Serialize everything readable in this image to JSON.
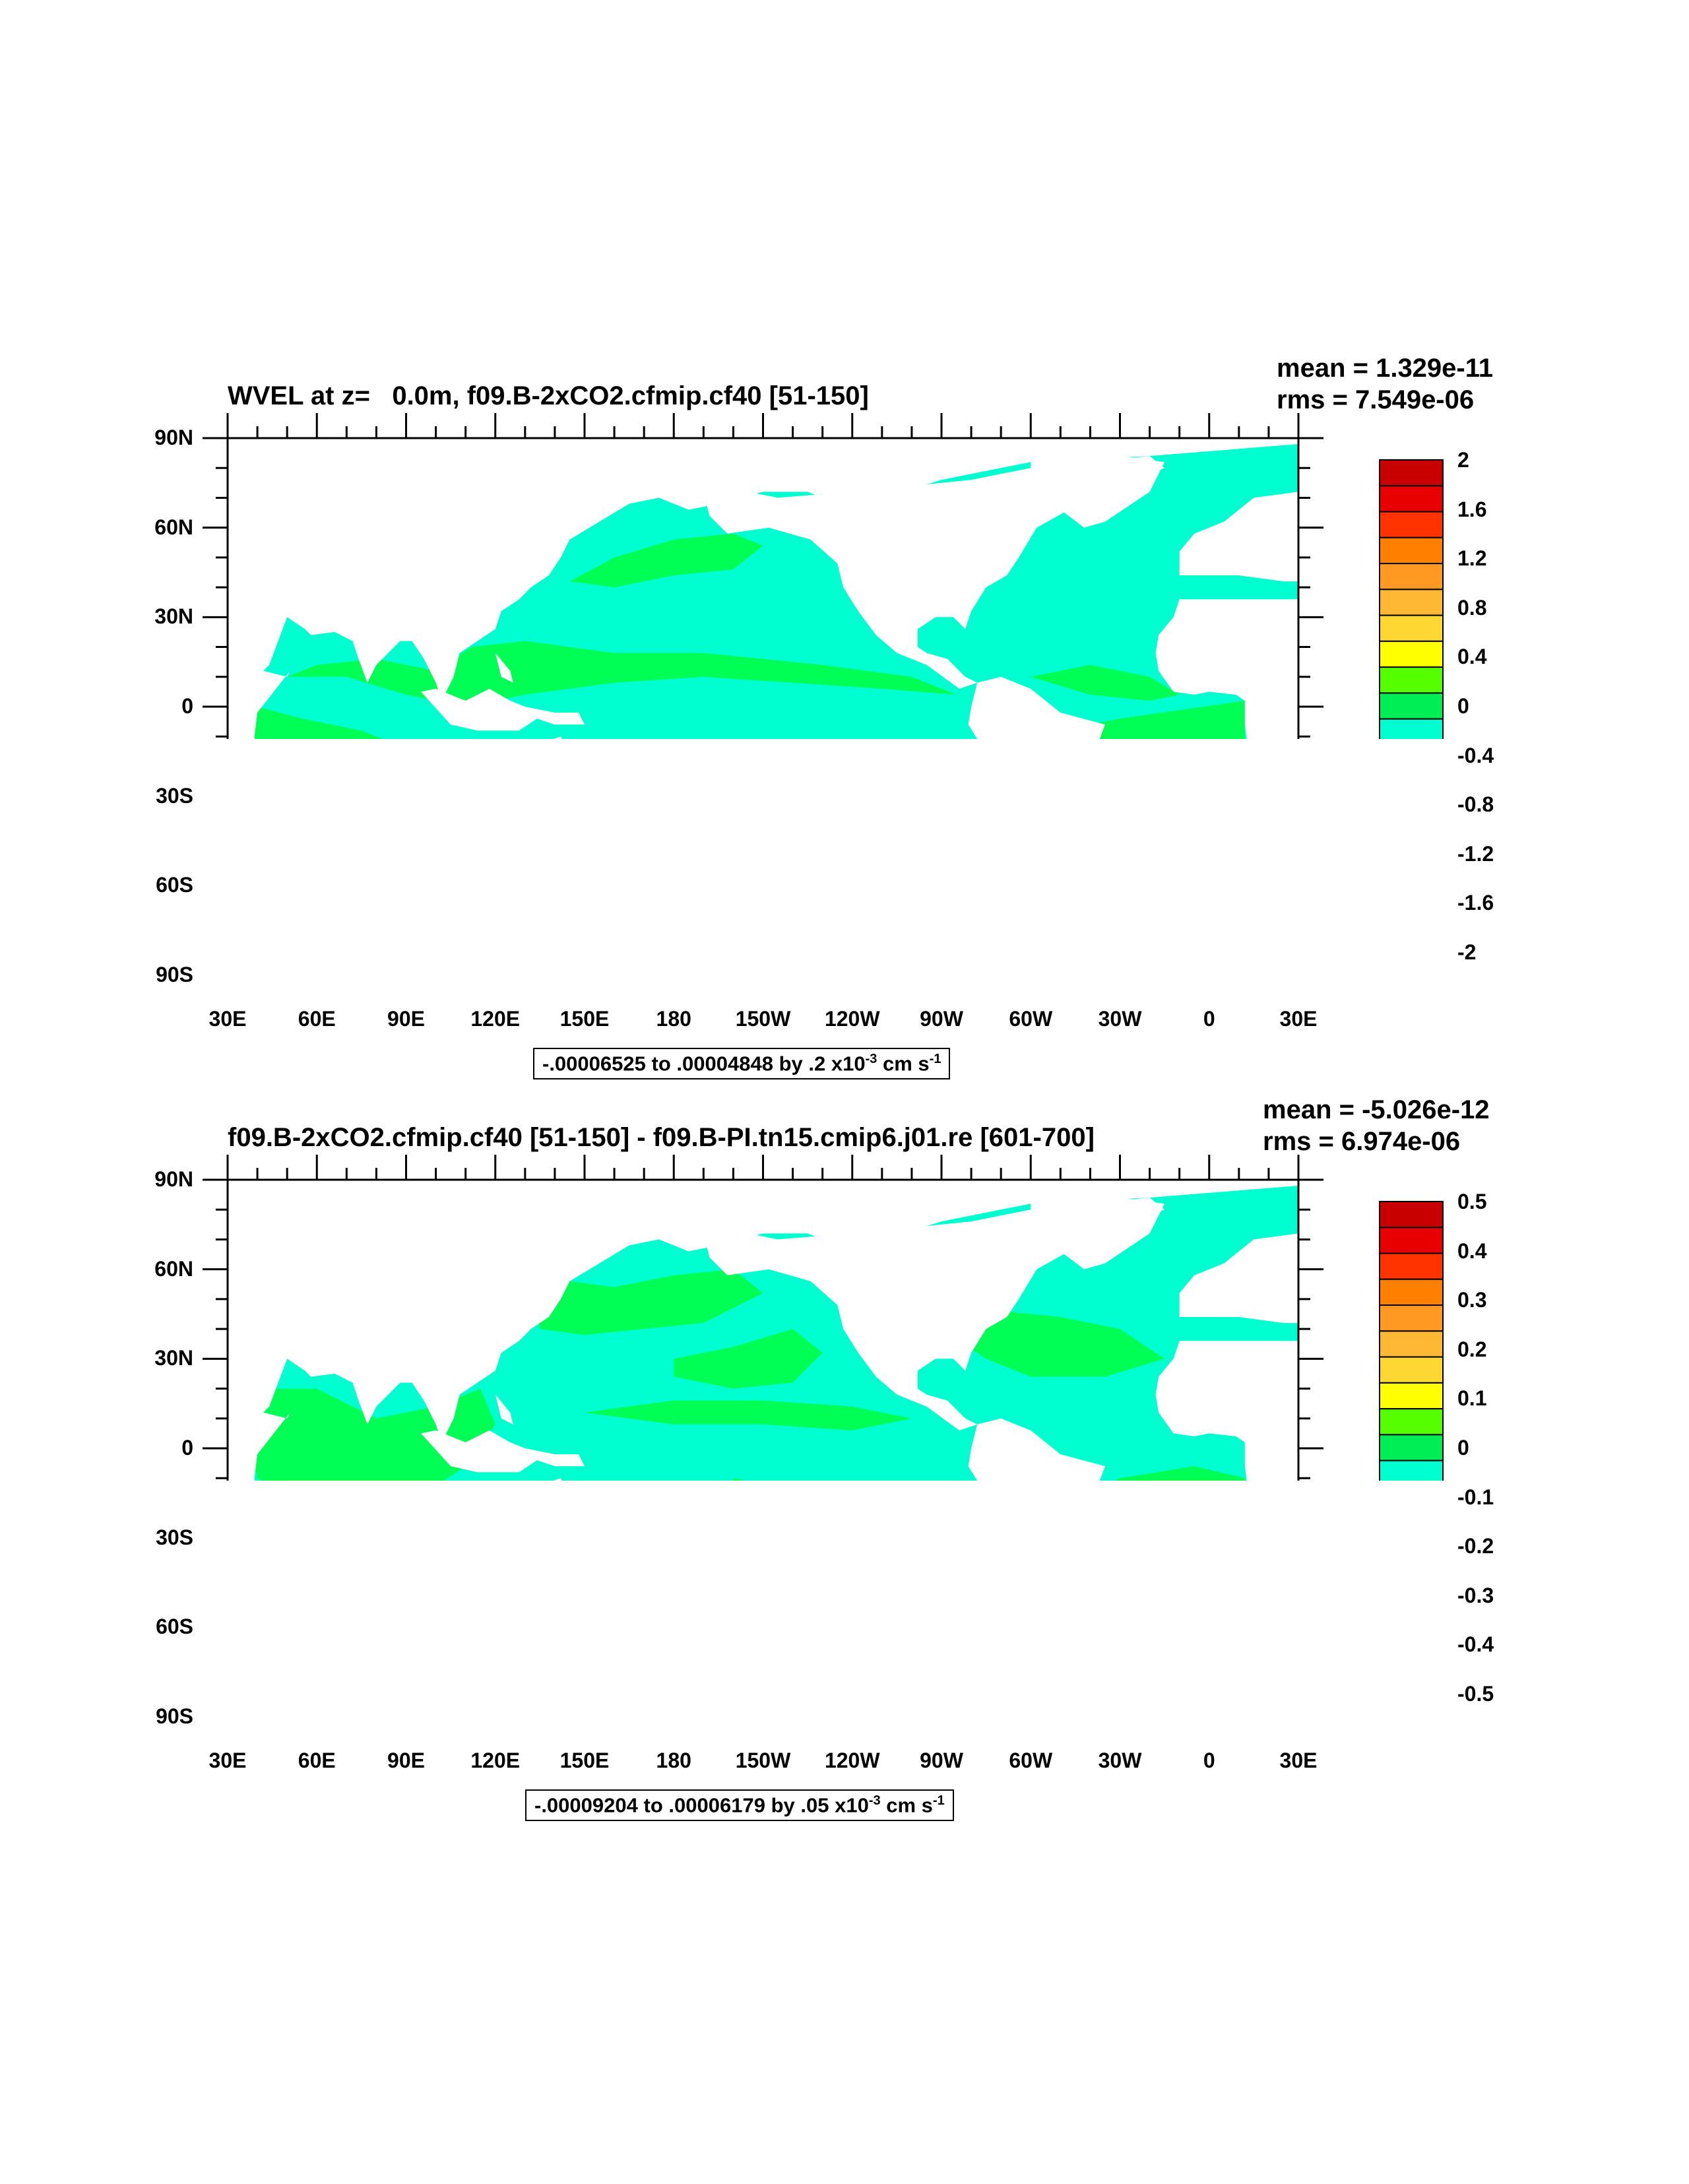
{
  "panels": [
    {
      "title": "WVEL at z=   0.0m, f09.B-2xCO2.cfmip.cf40 [51-150]",
      "mean": "mean = 1.329e-11",
      "rms": "rms = 7.549e-06",
      "contour_info": {
        "lo": "-.00006525",
        "to": "to",
        "hi": ".00004848",
        "by": "by",
        "step": ".2",
        "x": "x10",
        "exp": "-3",
        "units": "cm s",
        "units_exp": "-1"
      },
      "colorbar_labels": [
        "2",
        "1.6",
        "1.2",
        "0.8",
        "0.4",
        "0",
        "-0.4",
        "-0.8",
        "-1.2",
        "-1.6",
        "-2"
      ]
    },
    {
      "title": "f09.B-2xCO2.cfmip.cf40 [51-150] - f09.B-PI.tn15.cmip6.j01.re [601-700]",
      "mean": "mean = -5.026e-12",
      "rms": "rms = 6.974e-06",
      "contour_info": {
        "lo": "-.00009204",
        "to": "to",
        "hi": ".00006179",
        "by": "by",
        "step": ".05",
        "x": "x10",
        "exp": "-3",
        "units": "cm s",
        "units_exp": "-1"
      },
      "colorbar_labels": [
        "0.5",
        "0.4",
        "0.3",
        "0.2",
        "0.1",
        "0",
        "-0.1",
        "-0.2",
        "-0.3",
        "-0.4",
        "-0.5"
      ]
    }
  ],
  "lat_labels": [
    "90N",
    "60N",
    "30N",
    "0",
    "30S",
    "60S",
    "90S"
  ],
  "lon_labels": [
    "30E",
    "60E",
    "90E",
    "120E",
    "150E",
    "180",
    "150W",
    "120W",
    "90W",
    "60W",
    "30W",
    "0",
    "30E"
  ],
  "colors": {
    "land": "#ffffff",
    "cyan": "#00ffd0",
    "green": "#00ff55",
    "colorbar": [
      "#c80000",
      "#e80000",
      "#ff3300",
      "#ff8000",
      "#ff9922",
      "#ffb833",
      "#ffd733",
      "#ffff00",
      "#55ff00",
      "#00ee55",
      "#00ffd0",
      "#00ddff",
      "#00aaff",
      "#0077ff",
      "#0000ff",
      "#9900dd",
      "#ee00dd",
      "#c8c8c8",
      "#707070"
    ]
  }
}
